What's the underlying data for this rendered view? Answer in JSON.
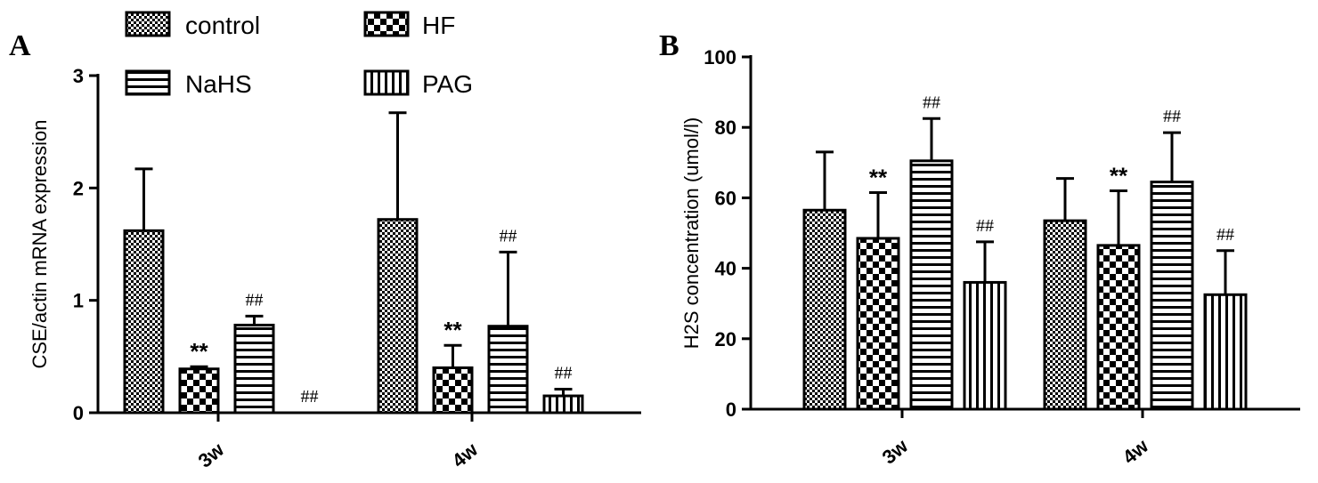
{
  "legend": {
    "entries": [
      {
        "name": "control",
        "pattern": "checker-fine"
      },
      {
        "name": "HF",
        "pattern": "checker-coarse"
      },
      {
        "name": "NaHS",
        "pattern": "horizontal-lines"
      },
      {
        "name": "PAG",
        "pattern": "vertical-lines"
      }
    ]
  },
  "chart_data": [
    {
      "panel": "A",
      "type": "bar",
      "ylabel": "CSE/actin mRNA expression",
      "ylim": [
        0,
        3
      ],
      "yticks": [
        "0",
        "1",
        "2",
        "3"
      ],
      "categories": [
        "3w",
        "4w"
      ],
      "series": [
        {
          "name": "control",
          "values": [
            1.62,
            1.72
          ],
          "errors": [
            0.55,
            0.95
          ],
          "annotations": [
            "",
            ""
          ]
        },
        {
          "name": "HF",
          "values": [
            0.39,
            0.4
          ],
          "errors": [
            0.02,
            0.2
          ],
          "annotations": [
            "**",
            "**"
          ]
        },
        {
          "name": "NaHS",
          "values": [
            0.78,
            0.77
          ],
          "errors": [
            0.08,
            0.66
          ],
          "annotations": [
            "##",
            "##"
          ]
        },
        {
          "name": "PAG",
          "values": [
            0.0,
            0.15
          ],
          "errors": [
            0.0,
            0.06
          ],
          "annotations": [
            "##",
            "##"
          ]
        }
      ]
    },
    {
      "panel": "B",
      "type": "bar",
      "ylabel": "H2S concentration (umol/l)",
      "ylim": [
        0,
        100
      ],
      "yticks": [
        "0",
        "20",
        "40",
        "60",
        "80",
        "100"
      ],
      "categories": [
        "3w",
        "4w"
      ],
      "series": [
        {
          "name": "control",
          "values": [
            56.5,
            53.5
          ],
          "errors": [
            16.5,
            12.0
          ],
          "annotations": [
            "",
            ""
          ]
        },
        {
          "name": "HF",
          "values": [
            48.5,
            46.5
          ],
          "errors": [
            13.0,
            15.5
          ],
          "annotations": [
            "**",
            "**"
          ]
        },
        {
          "name": "NaHS",
          "values": [
            70.5,
            64.5
          ],
          "errors": [
            12.0,
            14.0
          ],
          "annotations": [
            "##",
            "##"
          ]
        },
        {
          "name": "PAG",
          "values": [
            36.0,
            32.5
          ],
          "errors": [
            11.5,
            12.5
          ],
          "annotations": [
            "##",
            "##"
          ]
        }
      ]
    }
  ]
}
